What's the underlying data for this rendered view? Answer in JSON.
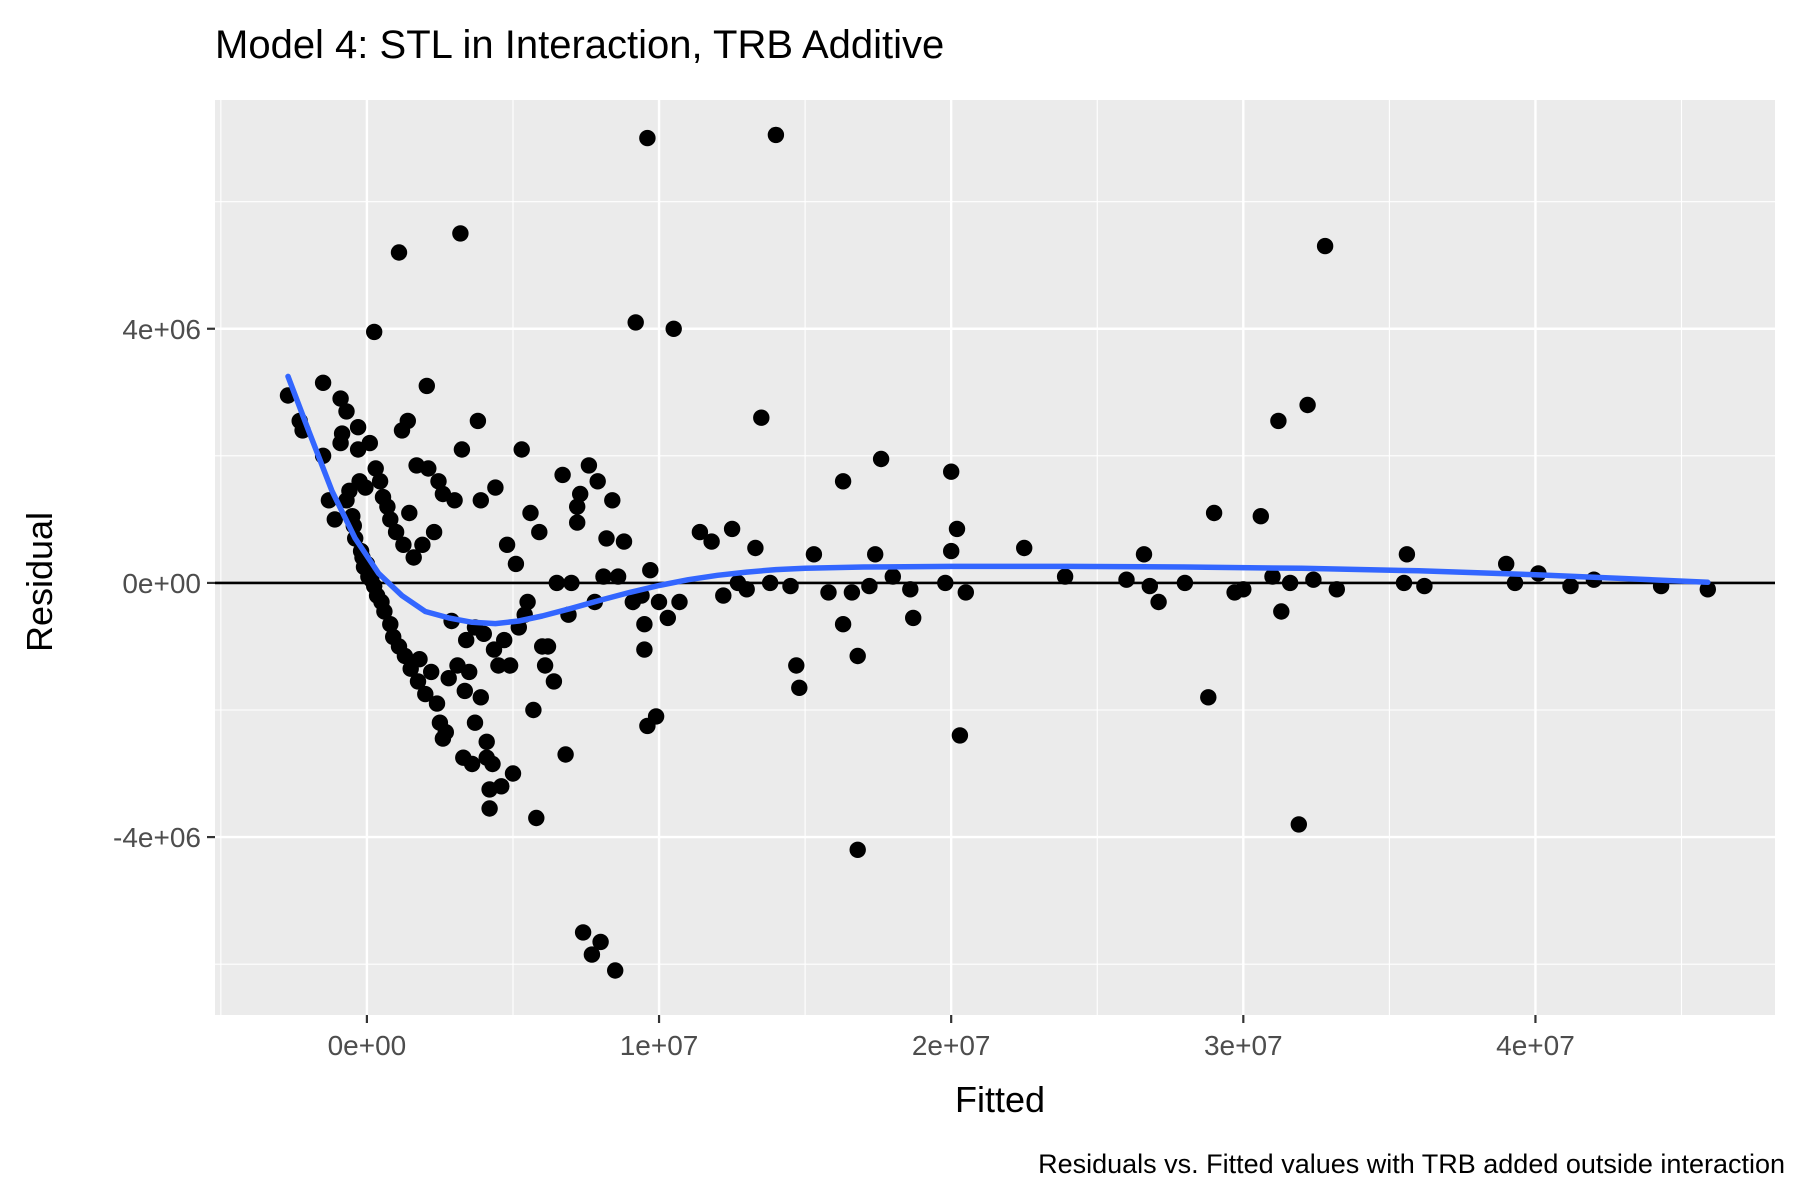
{
  "chart_data": {
    "type": "scatter",
    "title": "Model 4: STL in Interaction, TRB Additive",
    "caption": "Residuals vs. Fitted values with TRB added outside interaction",
    "xlabel": "Fitted",
    "ylabel": "Residual",
    "xlim": [
      -5200000,
      48200000
    ],
    "ylim": [
      -6800000,
      7600000
    ],
    "x_ticks": [
      0,
      10000000,
      20000000,
      30000000,
      40000000
    ],
    "x_tick_labels": [
      "0e+00",
      "1e+07",
      "2e+07",
      "3e+07",
      "4e+07"
    ],
    "y_ticks": [
      -4000000,
      0,
      4000000
    ],
    "y_tick_labels": [
      "-4e+06",
      "0e+00",
      "4e+06"
    ],
    "reference_line": {
      "y": 0,
      "color": "#000000"
    },
    "smooth_color": "#3366FF",
    "point_color": "#000000",
    "panel_background": "#EBEBEB",
    "grid_color": "#FFFFFF",
    "points": [
      [
        -2700000,
        2950000
      ],
      [
        -2300000,
        2550000
      ],
      [
        -2200000,
        2400000
      ],
      [
        -1500000,
        3150000
      ],
      [
        -1500000,
        2000000
      ],
      [
        -1300000,
        1300000
      ],
      [
        -1100000,
        1000000
      ],
      [
        -900000,
        2900000
      ],
      [
        -900000,
        2200000
      ],
      [
        -850000,
        2350000
      ],
      [
        -700000,
        2700000
      ],
      [
        -700000,
        1300000
      ],
      [
        -600000,
        1450000
      ],
      [
        -500000,
        1050000
      ],
      [
        -450000,
        900000
      ],
      [
        -400000,
        700000
      ],
      [
        -300000,
        2450000
      ],
      [
        -300000,
        2100000
      ],
      [
        -250000,
        1600000
      ],
      [
        -200000,
        500000
      ],
      [
        -150000,
        400000
      ],
      [
        -100000,
        250000
      ],
      [
        -50000,
        1500000
      ],
      [
        0,
        300000
      ],
      [
        50000,
        100000
      ],
      [
        100000,
        2200000
      ],
      [
        150000,
        50000
      ],
      [
        250000,
        3950000
      ],
      [
        250000,
        -50000
      ],
      [
        300000,
        1800000
      ],
      [
        350000,
        -200000
      ],
      [
        450000,
        1600000
      ],
      [
        500000,
        -300000
      ],
      [
        550000,
        1350000
      ],
      [
        600000,
        -450000
      ],
      [
        700000,
        1200000
      ],
      [
        800000,
        -650000
      ],
      [
        800000,
        1000000
      ],
      [
        900000,
        -850000
      ],
      [
        1000000,
        800000
      ],
      [
        1100000,
        5200000
      ],
      [
        1100000,
        -1000000
      ],
      [
        1200000,
        2400000
      ],
      [
        1250000,
        600000
      ],
      [
        1300000,
        -1150000
      ],
      [
        1400000,
        2550000
      ],
      [
        1450000,
        1100000
      ],
      [
        1500000,
        -1350000
      ],
      [
        1600000,
        400000
      ],
      [
        1700000,
        1850000
      ],
      [
        1750000,
        -1550000
      ],
      [
        1800000,
        -1200000
      ],
      [
        1900000,
        600000
      ],
      [
        2000000,
        -1750000
      ],
      [
        2050000,
        3100000
      ],
      [
        2100000,
        1800000
      ],
      [
        2200000,
        -1400000
      ],
      [
        2300000,
        800000
      ],
      [
        2400000,
        -1900000
      ],
      [
        2450000,
        1600000
      ],
      [
        2500000,
        -2200000
      ],
      [
        2600000,
        1400000
      ],
      [
        2600000,
        -2450000
      ],
      [
        2700000,
        -2350000
      ],
      [
        2800000,
        -1500000
      ],
      [
        2900000,
        -600000
      ],
      [
        3000000,
        1300000
      ],
      [
        3100000,
        -1300000
      ],
      [
        3200000,
        5500000
      ],
      [
        3250000,
        2100000
      ],
      [
        3300000,
        -2750000
      ],
      [
        3350000,
        -1700000
      ],
      [
        3400000,
        -900000
      ],
      [
        3500000,
        -1400000
      ],
      [
        3600000,
        -2850000
      ],
      [
        3700000,
        -700000
      ],
      [
        3700000,
        -2200000
      ],
      [
        3800000,
        2550000
      ],
      [
        3900000,
        -1800000
      ],
      [
        3900000,
        1300000
      ],
      [
        4000000,
        -800000
      ],
      [
        4100000,
        -2750000
      ],
      [
        4100000,
        -2500000
      ],
      [
        4200000,
        -3250000
      ],
      [
        4200000,
        -3550000
      ],
      [
        4300000,
        -2850000
      ],
      [
        4350000,
        -1050000
      ],
      [
        4400000,
        1500000
      ],
      [
        4500000,
        -1300000
      ],
      [
        4600000,
        -3200000
      ],
      [
        4700000,
        -900000
      ],
      [
        4800000,
        600000
      ],
      [
        4900000,
        -1300000
      ],
      [
        5000000,
        -3000000
      ],
      [
        5100000,
        300000
      ],
      [
        5200000,
        -700000
      ],
      [
        5300000,
        2100000
      ],
      [
        5400000,
        -500000
      ],
      [
        5500000,
        -300000
      ],
      [
        5600000,
        1100000
      ],
      [
        5700000,
        -2000000
      ],
      [
        5800000,
        -3700000
      ],
      [
        5900000,
        800000
      ],
      [
        6000000,
        -1000000
      ],
      [
        6100000,
        -1300000
      ],
      [
        6200000,
        -1000000
      ],
      [
        6400000,
        -1550000
      ],
      [
        6500000,
        0
      ],
      [
        6700000,
        1700000
      ],
      [
        6800000,
        -2700000
      ],
      [
        6900000,
        -500000
      ],
      [
        7000000,
        0
      ],
      [
        7200000,
        1200000
      ],
      [
        7200000,
        950000
      ],
      [
        7300000,
        1400000
      ],
      [
        7400000,
        -5500000
      ],
      [
        7600000,
        1850000
      ],
      [
        7700000,
        -5850000
      ],
      [
        7800000,
        -300000
      ],
      [
        7900000,
        1600000
      ],
      [
        8000000,
        -5650000
      ],
      [
        8100000,
        100000
      ],
      [
        8200000,
        700000
      ],
      [
        8400000,
        1300000
      ],
      [
        8500000,
        -6100000
      ],
      [
        8600000,
        100000
      ],
      [
        8800000,
        650000
      ],
      [
        9100000,
        -300000
      ],
      [
        9200000,
        4100000
      ],
      [
        9400000,
        -200000
      ],
      [
        9500000,
        -650000
      ],
      [
        9500000,
        -1050000
      ],
      [
        9600000,
        7000000
      ],
      [
        9600000,
        -2250000
      ],
      [
        9700000,
        200000
      ],
      [
        9900000,
        -2100000
      ],
      [
        10000000,
        -300000
      ],
      [
        10300000,
        -550000
      ],
      [
        10500000,
        4000000
      ],
      [
        10700000,
        -300000
      ],
      [
        11400000,
        800000
      ],
      [
        11800000,
        650000
      ],
      [
        12200000,
        -200000
      ],
      [
        12500000,
        850000
      ],
      [
        12700000,
        0
      ],
      [
        13000000,
        -100000
      ],
      [
        13300000,
        550000
      ],
      [
        13500000,
        2600000
      ],
      [
        13800000,
        0
      ],
      [
        14000000,
        7050000
      ],
      [
        14500000,
        -50000
      ],
      [
        14700000,
        -1300000
      ],
      [
        14800000,
        -1650000
      ],
      [
        15300000,
        450000
      ],
      [
        15800000,
        -150000
      ],
      [
        16300000,
        1600000
      ],
      [
        16300000,
        -650000
      ],
      [
        16600000,
        -150000
      ],
      [
        16800000,
        -4200000
      ],
      [
        16800000,
        -1150000
      ],
      [
        17200000,
        -50000
      ],
      [
        17400000,
        450000
      ],
      [
        17600000,
        1950000
      ],
      [
        18000000,
        100000
      ],
      [
        18600000,
        -100000
      ],
      [
        18700000,
        -550000
      ],
      [
        19800000,
        0
      ],
      [
        20000000,
        1750000
      ],
      [
        20000000,
        500000
      ],
      [
        20200000,
        850000
      ],
      [
        20300000,
        -2400000
      ],
      [
        20500000,
        -150000
      ],
      [
        22500000,
        550000
      ],
      [
        23900000,
        100000
      ],
      [
        26000000,
        50000
      ],
      [
        26600000,
        450000
      ],
      [
        26800000,
        -50000
      ],
      [
        27100000,
        -300000
      ],
      [
        28000000,
        0
      ],
      [
        28800000,
        -1800000
      ],
      [
        29000000,
        1100000
      ],
      [
        29700000,
        -150000
      ],
      [
        30000000,
        -100000
      ],
      [
        30600000,
        1050000
      ],
      [
        31000000,
        100000
      ],
      [
        31200000,
        2550000
      ],
      [
        31300000,
        -450000
      ],
      [
        31600000,
        0
      ],
      [
        31900000,
        -3800000
      ],
      [
        32200000,
        2800000
      ],
      [
        32400000,
        50000
      ],
      [
        32800000,
        5300000
      ],
      [
        33200000,
        -100000
      ],
      [
        35500000,
        0
      ],
      [
        35600000,
        450000
      ],
      [
        36200000,
        -50000
      ],
      [
        39000000,
        300000
      ],
      [
        39300000,
        0
      ],
      [
        40100000,
        150000
      ],
      [
        41200000,
        -50000
      ],
      [
        42000000,
        50000
      ],
      [
        44300000,
        -50000
      ],
      [
        45900000,
        -100000
      ]
    ],
    "smooth_line": [
      [
        -2700000,
        3250000
      ],
      [
        -2000000,
        2400000
      ],
      [
        -1200000,
        1450000
      ],
      [
        -400000,
        700000
      ],
      [
        400000,
        150000
      ],
      [
        1200000,
        -200000
      ],
      [
        2000000,
        -450000
      ],
      [
        2800000,
        -550000
      ],
      [
        3600000,
        -620000
      ],
      [
        4400000,
        -640000
      ],
      [
        5200000,
        -600000
      ],
      [
        6000000,
        -520000
      ],
      [
        7000000,
        -400000
      ],
      [
        8000000,
        -270000
      ],
      [
        9000000,
        -150000
      ],
      [
        10000000,
        -40000
      ],
      [
        11000000,
        50000
      ],
      [
        12000000,
        120000
      ],
      [
        13000000,
        170000
      ],
      [
        14000000,
        210000
      ],
      [
        15000000,
        230000
      ],
      [
        17000000,
        250000
      ],
      [
        20000000,
        260000
      ],
      [
        24000000,
        260000
      ],
      [
        28000000,
        250000
      ],
      [
        32000000,
        230000
      ],
      [
        36000000,
        190000
      ],
      [
        40000000,
        130000
      ],
      [
        43000000,
        70000
      ],
      [
        45900000,
        10000
      ]
    ]
  }
}
